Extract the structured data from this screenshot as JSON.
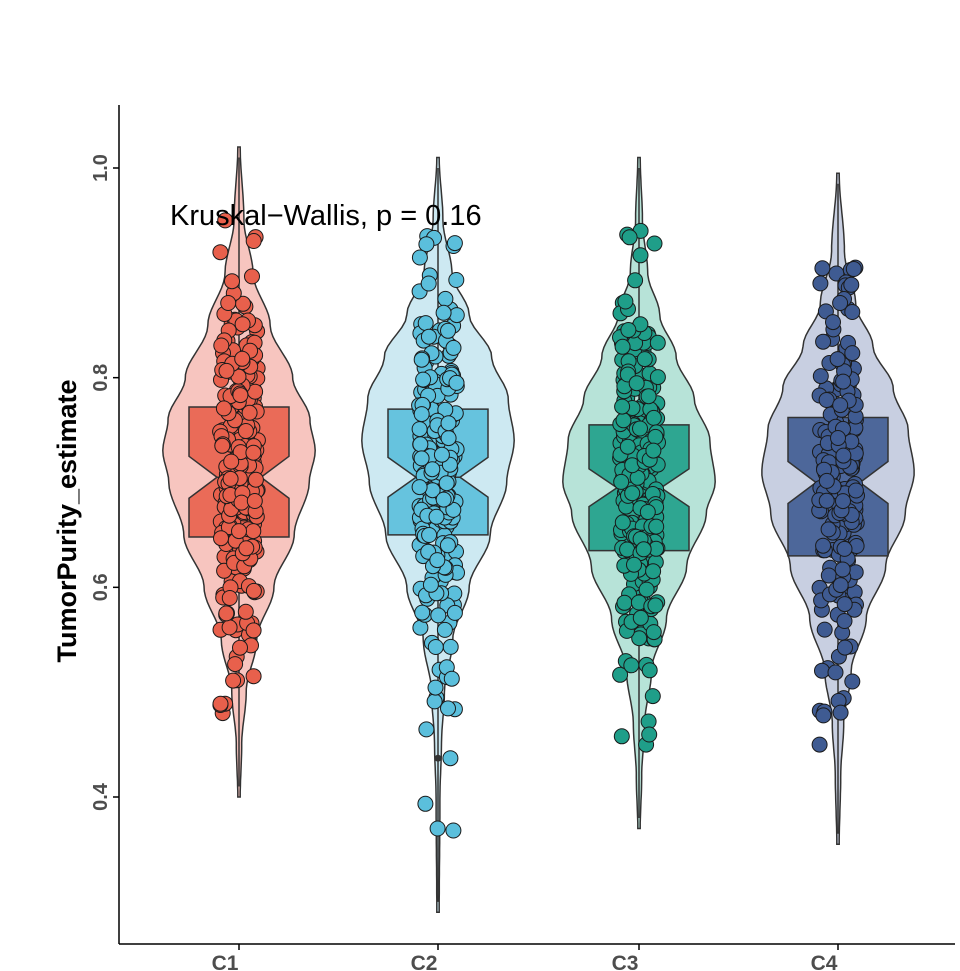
{
  "chart_data": {
    "type": "violin",
    "title": "",
    "xlabel": "",
    "ylabel": "TumorPurity_estimate",
    "ylim": [
      0.27,
      1.06
    ],
    "yticks": [
      "0.4",
      "0.6",
      "0.8",
      "1.0"
    ],
    "ytick_values": [
      0.4,
      0.6,
      0.8,
      1.0
    ],
    "annotation": "Kruskal−Wallis, p = 0.16",
    "grid": false,
    "legend": "none",
    "categories": [
      "C1",
      "C2",
      "C3",
      "C4"
    ],
    "groups": [
      {
        "category": "C1",
        "color": "#e8604c",
        "violin_fill": "#f7c5bf",
        "min": 0.4,
        "max": 1.02,
        "box": {
          "q1": 0.648,
          "median": 0.705,
          "q3": 0.772,
          "notch_low": 0.685,
          "notch_high": 0.725
        },
        "density": [
          [
            0.4,
            0.0
          ],
          [
            0.45,
            0.02
          ],
          [
            0.5,
            0.08
          ],
          [
            0.55,
            0.22
          ],
          [
            0.6,
            0.45
          ],
          [
            0.65,
            0.72
          ],
          [
            0.7,
            0.92
          ],
          [
            0.73,
            1.0
          ],
          [
            0.76,
            0.93
          ],
          [
            0.8,
            0.7
          ],
          [
            0.85,
            0.4
          ],
          [
            0.9,
            0.17
          ],
          [
            0.95,
            0.05
          ],
          [
            1.02,
            0.0
          ]
        ],
        "points_n": 250,
        "points_range": [
          0.48,
          0.95
        ]
      },
      {
        "category": "C2",
        "color": "#5bbfdc",
        "violin_fill": "#cde9f2",
        "min": 0.29,
        "max": 1.01,
        "box": {
          "q1": 0.65,
          "median": 0.705,
          "q3": 0.77,
          "notch_low": 0.686,
          "notch_high": 0.724
        },
        "density": [
          [
            0.29,
            0.0
          ],
          [
            0.4,
            0.01
          ],
          [
            0.45,
            0.03
          ],
          [
            0.5,
            0.07
          ],
          [
            0.55,
            0.18
          ],
          [
            0.6,
            0.4
          ],
          [
            0.65,
            0.68
          ],
          [
            0.7,
            0.9
          ],
          [
            0.74,
            1.0
          ],
          [
            0.78,
            0.92
          ],
          [
            0.82,
            0.7
          ],
          [
            0.86,
            0.4
          ],
          [
            0.9,
            0.17
          ],
          [
            0.95,
            0.05
          ],
          [
            1.01,
            0.0
          ]
        ],
        "points_n": 230,
        "points_range": [
          0.37,
          0.935
        ],
        "outliers": [
          0.437,
          0.368
        ]
      },
      {
        "category": "C3",
        "color": "#1f9e89",
        "violin_fill": "#b7e3d8",
        "min": 0.37,
        "max": 1.01,
        "box": {
          "q1": 0.635,
          "median": 0.695,
          "q3": 0.755,
          "notch_low": 0.677,
          "notch_high": 0.713
        },
        "density": [
          [
            0.37,
            0.0
          ],
          [
            0.42,
            0.02
          ],
          [
            0.47,
            0.06
          ],
          [
            0.52,
            0.15
          ],
          [
            0.57,
            0.35
          ],
          [
            0.62,
            0.62
          ],
          [
            0.67,
            0.88
          ],
          [
            0.7,
            1.0
          ],
          [
            0.74,
            0.93
          ],
          [
            0.78,
            0.72
          ],
          [
            0.82,
            0.48
          ],
          [
            0.86,
            0.26
          ],
          [
            0.9,
            0.1
          ],
          [
            0.95,
            0.03
          ],
          [
            1.01,
            0.0
          ]
        ],
        "points_n": 260,
        "points_range": [
          0.45,
          0.94
        ]
      },
      {
        "category": "C4",
        "color": "#3f5b92",
        "violin_fill": "#c8cfe1",
        "min": 0.355,
        "max": 0.995,
        "box": {
          "q1": 0.63,
          "median": 0.7,
          "q3": 0.762,
          "notch_low": 0.68,
          "notch_high": 0.72
        },
        "density": [
          [
            0.355,
            0.0
          ],
          [
            0.42,
            0.02
          ],
          [
            0.47,
            0.06
          ],
          [
            0.52,
            0.16
          ],
          [
            0.57,
            0.36
          ],
          [
            0.62,
            0.62
          ],
          [
            0.67,
            0.88
          ],
          [
            0.71,
            1.0
          ],
          [
            0.75,
            0.92
          ],
          [
            0.79,
            0.72
          ],
          [
            0.83,
            0.45
          ],
          [
            0.87,
            0.22
          ],
          [
            0.92,
            0.07
          ],
          [
            0.995,
            0.0
          ]
        ],
        "points_n": 190,
        "points_range": [
          0.45,
          0.905
        ]
      }
    ]
  }
}
